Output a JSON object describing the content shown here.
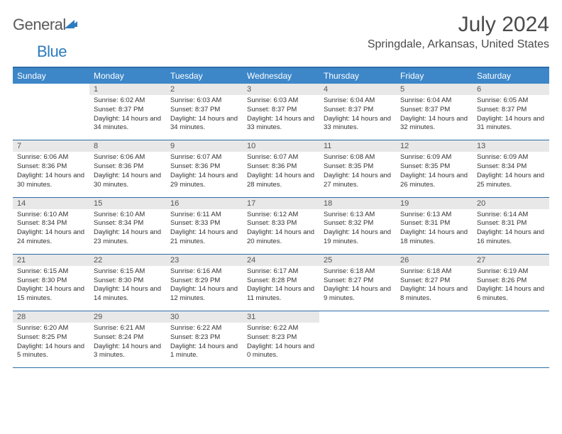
{
  "brand": {
    "word1": "General",
    "word2": "Blue"
  },
  "title": "July 2024",
  "location": "Springdale, Arkansas, United States",
  "day_headers": [
    "Sunday",
    "Monday",
    "Tuesday",
    "Wednesday",
    "Thursday",
    "Friday",
    "Saturday"
  ],
  "colors": {
    "header_bg": "#3d87c9",
    "header_border": "#2c6ba8",
    "daynum_bg": "#e8e8e8",
    "brand_blue": "#2c7bbf",
    "text_gray": "#4a4a4a"
  },
  "weeks": [
    [
      {
        "n": "",
        "sr": "",
        "ss": "",
        "dl": ""
      },
      {
        "n": "1",
        "sr": "Sunrise: 6:02 AM",
        "ss": "Sunset: 8:37 PM",
        "dl": "Daylight: 14 hours and 34 minutes."
      },
      {
        "n": "2",
        "sr": "Sunrise: 6:03 AM",
        "ss": "Sunset: 8:37 PM",
        "dl": "Daylight: 14 hours and 34 minutes."
      },
      {
        "n": "3",
        "sr": "Sunrise: 6:03 AM",
        "ss": "Sunset: 8:37 PM",
        "dl": "Daylight: 14 hours and 33 minutes."
      },
      {
        "n": "4",
        "sr": "Sunrise: 6:04 AM",
        "ss": "Sunset: 8:37 PM",
        "dl": "Daylight: 14 hours and 33 minutes."
      },
      {
        "n": "5",
        "sr": "Sunrise: 6:04 AM",
        "ss": "Sunset: 8:37 PM",
        "dl": "Daylight: 14 hours and 32 minutes."
      },
      {
        "n": "6",
        "sr": "Sunrise: 6:05 AM",
        "ss": "Sunset: 8:37 PM",
        "dl": "Daylight: 14 hours and 31 minutes."
      }
    ],
    [
      {
        "n": "7",
        "sr": "Sunrise: 6:06 AM",
        "ss": "Sunset: 8:36 PM",
        "dl": "Daylight: 14 hours and 30 minutes."
      },
      {
        "n": "8",
        "sr": "Sunrise: 6:06 AM",
        "ss": "Sunset: 8:36 PM",
        "dl": "Daylight: 14 hours and 30 minutes."
      },
      {
        "n": "9",
        "sr": "Sunrise: 6:07 AM",
        "ss": "Sunset: 8:36 PM",
        "dl": "Daylight: 14 hours and 29 minutes."
      },
      {
        "n": "10",
        "sr": "Sunrise: 6:07 AM",
        "ss": "Sunset: 8:36 PM",
        "dl": "Daylight: 14 hours and 28 minutes."
      },
      {
        "n": "11",
        "sr": "Sunrise: 6:08 AM",
        "ss": "Sunset: 8:35 PM",
        "dl": "Daylight: 14 hours and 27 minutes."
      },
      {
        "n": "12",
        "sr": "Sunrise: 6:09 AM",
        "ss": "Sunset: 8:35 PM",
        "dl": "Daylight: 14 hours and 26 minutes."
      },
      {
        "n": "13",
        "sr": "Sunrise: 6:09 AM",
        "ss": "Sunset: 8:34 PM",
        "dl": "Daylight: 14 hours and 25 minutes."
      }
    ],
    [
      {
        "n": "14",
        "sr": "Sunrise: 6:10 AM",
        "ss": "Sunset: 8:34 PM",
        "dl": "Daylight: 14 hours and 24 minutes."
      },
      {
        "n": "15",
        "sr": "Sunrise: 6:10 AM",
        "ss": "Sunset: 8:34 PM",
        "dl": "Daylight: 14 hours and 23 minutes."
      },
      {
        "n": "16",
        "sr": "Sunrise: 6:11 AM",
        "ss": "Sunset: 8:33 PM",
        "dl": "Daylight: 14 hours and 21 minutes."
      },
      {
        "n": "17",
        "sr": "Sunrise: 6:12 AM",
        "ss": "Sunset: 8:33 PM",
        "dl": "Daylight: 14 hours and 20 minutes."
      },
      {
        "n": "18",
        "sr": "Sunrise: 6:13 AM",
        "ss": "Sunset: 8:32 PM",
        "dl": "Daylight: 14 hours and 19 minutes."
      },
      {
        "n": "19",
        "sr": "Sunrise: 6:13 AM",
        "ss": "Sunset: 8:31 PM",
        "dl": "Daylight: 14 hours and 18 minutes."
      },
      {
        "n": "20",
        "sr": "Sunrise: 6:14 AM",
        "ss": "Sunset: 8:31 PM",
        "dl": "Daylight: 14 hours and 16 minutes."
      }
    ],
    [
      {
        "n": "21",
        "sr": "Sunrise: 6:15 AM",
        "ss": "Sunset: 8:30 PM",
        "dl": "Daylight: 14 hours and 15 minutes."
      },
      {
        "n": "22",
        "sr": "Sunrise: 6:15 AM",
        "ss": "Sunset: 8:30 PM",
        "dl": "Daylight: 14 hours and 14 minutes."
      },
      {
        "n": "23",
        "sr": "Sunrise: 6:16 AM",
        "ss": "Sunset: 8:29 PM",
        "dl": "Daylight: 14 hours and 12 minutes."
      },
      {
        "n": "24",
        "sr": "Sunrise: 6:17 AM",
        "ss": "Sunset: 8:28 PM",
        "dl": "Daylight: 14 hours and 11 minutes."
      },
      {
        "n": "25",
        "sr": "Sunrise: 6:18 AM",
        "ss": "Sunset: 8:27 PM",
        "dl": "Daylight: 14 hours and 9 minutes."
      },
      {
        "n": "26",
        "sr": "Sunrise: 6:18 AM",
        "ss": "Sunset: 8:27 PM",
        "dl": "Daylight: 14 hours and 8 minutes."
      },
      {
        "n": "27",
        "sr": "Sunrise: 6:19 AM",
        "ss": "Sunset: 8:26 PM",
        "dl": "Daylight: 14 hours and 6 minutes."
      }
    ],
    [
      {
        "n": "28",
        "sr": "Sunrise: 6:20 AM",
        "ss": "Sunset: 8:25 PM",
        "dl": "Daylight: 14 hours and 5 minutes."
      },
      {
        "n": "29",
        "sr": "Sunrise: 6:21 AM",
        "ss": "Sunset: 8:24 PM",
        "dl": "Daylight: 14 hours and 3 minutes."
      },
      {
        "n": "30",
        "sr": "Sunrise: 6:22 AM",
        "ss": "Sunset: 8:23 PM",
        "dl": "Daylight: 14 hours and 1 minute."
      },
      {
        "n": "31",
        "sr": "Sunrise: 6:22 AM",
        "ss": "Sunset: 8:23 PM",
        "dl": "Daylight: 14 hours and 0 minutes."
      },
      {
        "n": "",
        "sr": "",
        "ss": "",
        "dl": ""
      },
      {
        "n": "",
        "sr": "",
        "ss": "",
        "dl": ""
      },
      {
        "n": "",
        "sr": "",
        "ss": "",
        "dl": ""
      }
    ]
  ]
}
